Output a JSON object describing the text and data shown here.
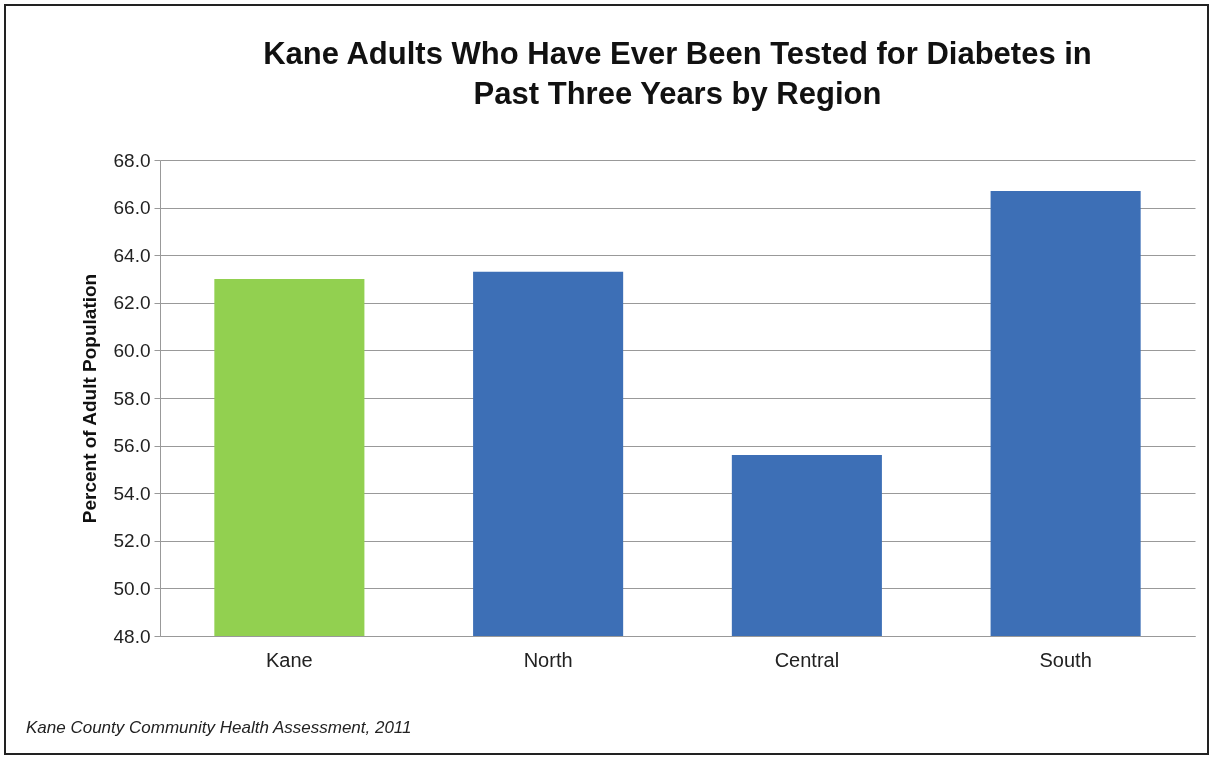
{
  "chart_data": {
    "type": "bar",
    "title": "Kane Adults Who Have Ever Been Tested for Diabetes in Past Three Years by Region",
    "ylabel": "Percent of Adult Population",
    "categories": [
      "Kane",
      "North",
      "Central",
      "South"
    ],
    "values": [
      63.0,
      63.3,
      55.6,
      66.7
    ],
    "colors": [
      "#92d050",
      "#3d6fb6",
      "#3d6fb6",
      "#3d6fb6"
    ],
    "ylim": [
      48,
      68
    ],
    "yticks": [
      {
        "value": 48,
        "label": "48.0"
      },
      {
        "value": 50,
        "label": "50.0"
      },
      {
        "value": 52,
        "label": "52.0"
      },
      {
        "value": 54,
        "label": "54.0"
      },
      {
        "value": 56,
        "label": "56.0"
      },
      {
        "value": 58,
        "label": "58.0"
      },
      {
        "value": 60,
        "label": "60.0"
      },
      {
        "value": 62,
        "label": "62.0"
      },
      {
        "value": 64,
        "label": "64.0"
      },
      {
        "value": 66,
        "label": "66.0"
      },
      {
        "value": 68,
        "label": "68.0"
      }
    ],
    "grid": "y",
    "annotations": [
      "Kane County Community Health Assessment, 2011"
    ]
  }
}
